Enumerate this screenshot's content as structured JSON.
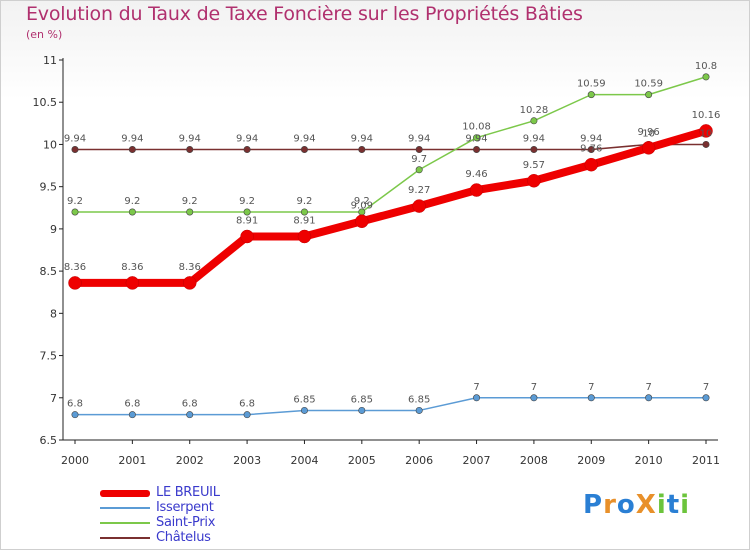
{
  "title": "Evolution du Taux de Taxe Foncière sur les Propriétés Bâties",
  "unit_label": "(en %)",
  "logo": {
    "text": "ProXiti",
    "letters": [
      {
        "ch": "P",
        "color": "#2a7fd4"
      },
      {
        "ch": "r",
        "color": "#e8902a"
      },
      {
        "ch": "o",
        "color": "#2a7fd4"
      },
      {
        "ch": "X",
        "color": "#e8902a"
      },
      {
        "ch": "i",
        "color": "#6cc43c"
      },
      {
        "ch": "t",
        "color": "#2a7fd4"
      },
      {
        "ch": "i",
        "color": "#6cc43c"
      }
    ]
  },
  "chart_data": {
    "type": "line",
    "x": [
      "2000",
      "2001",
      "2002",
      "2003",
      "2004",
      "2005",
      "2006",
      "2007",
      "2008",
      "2009",
      "2010",
      "2011"
    ],
    "ylim": [
      6.5,
      11
    ],
    "yticks": [
      6.5,
      7,
      7.5,
      8,
      8.5,
      9,
      9.5,
      10,
      10.5,
      11
    ],
    "ytick_labels": [
      "6.5",
      "7",
      "7.5",
      "8",
      "8.5",
      "9",
      "9.5",
      "10",
      "10.5",
      "11"
    ],
    "grid": false,
    "legend_position": "bottom-left",
    "series": [
      {
        "name": "Isserpent",
        "color": "#5b9bd5",
        "values": [
          6.8,
          6.8,
          6.8,
          6.8,
          6.85,
          6.85,
          6.85,
          7,
          7,
          7,
          7,
          7
        ],
        "labels": [
          "6.8",
          "6.8",
          "6.8",
          "6.8",
          "6.85",
          "6.85",
          "6.85",
          "7",
          "7",
          "7",
          "7",
          "7"
        ]
      },
      {
        "name": "Châtelus",
        "color": "#7a3030",
        "values": [
          9.94,
          9.94,
          9.94,
          9.94,
          9.94,
          9.94,
          9.94,
          9.94,
          9.94,
          9.94,
          10,
          10
        ],
        "labels": [
          "9.94",
          "9.94",
          "9.94",
          "9.94",
          "9.94",
          "9.94",
          "9.94",
          "9.94",
          "9.94",
          "9.94",
          "10",
          "10"
        ]
      },
      {
        "name": "Saint-Prix",
        "color": "#7cc84a",
        "values": [
          9.2,
          9.2,
          9.2,
          9.2,
          9.2,
          9.2,
          9.7,
          10.08,
          10.28,
          10.59,
          10.59,
          10.8
        ],
        "labels": [
          "9.2",
          "9.2",
          "9.2",
          "9.2",
          "9.2",
          "9.2",
          "9.7",
          "10.08",
          "10.28",
          "10.59",
          "10.59",
          "10.8"
        ]
      },
      {
        "name": "LE BREUIL",
        "color": "#ee0000",
        "values": [
          8.36,
          8.36,
          8.36,
          8.91,
          8.91,
          9.09,
          9.27,
          9.46,
          9.57,
          9.76,
          9.96,
          10.16
        ],
        "labels": [
          "8.36",
          "8.36",
          "8.36",
          "8.91",
          "8.91",
          "9.09",
          "9.27",
          "9.46",
          "9.57",
          "9.76",
          "9.96",
          "10.16"
        ]
      }
    ],
    "legend": [
      "LE BREUIL",
      "Isserpent",
      "Saint-Prix",
      "Châtelus"
    ]
  }
}
